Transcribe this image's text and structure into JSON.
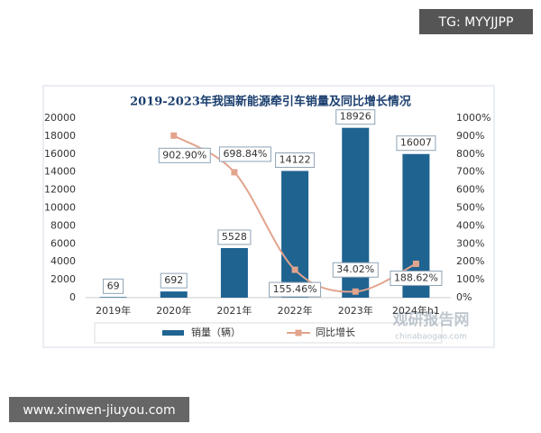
{
  "chart_data": {
    "type": "bar-line",
    "title": "2019-2023年我国新能源牵引车销量及同比增长情况",
    "categories": [
      "2019年",
      "2020年",
      "2021年",
      "2022年",
      "2023年",
      "2024年h1"
    ],
    "series": [
      {
        "name": "销量（辆）",
        "type": "bar",
        "color": "#1f6391",
        "values": [
          69,
          692,
          5528,
          14122,
          18926,
          16007
        ]
      },
      {
        "name": "同比增长",
        "type": "line",
        "axis": "y2",
        "color": "#e2a48d",
        "values": [
          null,
          902.9,
          698.84,
          155.46,
          34.02,
          188.62
        ],
        "value_labels": [
          null,
          "902.90%",
          "698.84%",
          "155.46%",
          "34.02%",
          "188.62%"
        ]
      }
    ],
    "ylim": [
      0,
      20000
    ],
    "yticks": [
      0,
      2000,
      4000,
      6000,
      8000,
      10000,
      12000,
      14000,
      16000,
      18000,
      20000
    ],
    "y2lim": [
      0,
      1000
    ],
    "y2ticks": [
      {
        "value": 0,
        "label": "0%"
      },
      {
        "value": 100,
        "label": "100%"
      },
      {
        "value": 200,
        "label": "200%"
      },
      {
        "value": 300,
        "label": "300%"
      },
      {
        "value": 400,
        "label": "400%"
      },
      {
        "value": 500,
        "label": "500%"
      },
      {
        "value": 600,
        "label": "600%"
      },
      {
        "value": 700,
        "label": "700%"
      },
      {
        "value": 800,
        "label": "800%"
      },
      {
        "value": 900,
        "label": "900%"
      },
      {
        "value": 1000,
        "label": "1000%"
      }
    ],
    "grid": false,
    "legend": "bottom"
  },
  "watermark": {
    "brand": "观研报告网",
    "url": "chinabaogao.com"
  },
  "overlays": {
    "tag": "TG: MYYJJPP",
    "site": "www.xinwen-jiuyou.com"
  }
}
